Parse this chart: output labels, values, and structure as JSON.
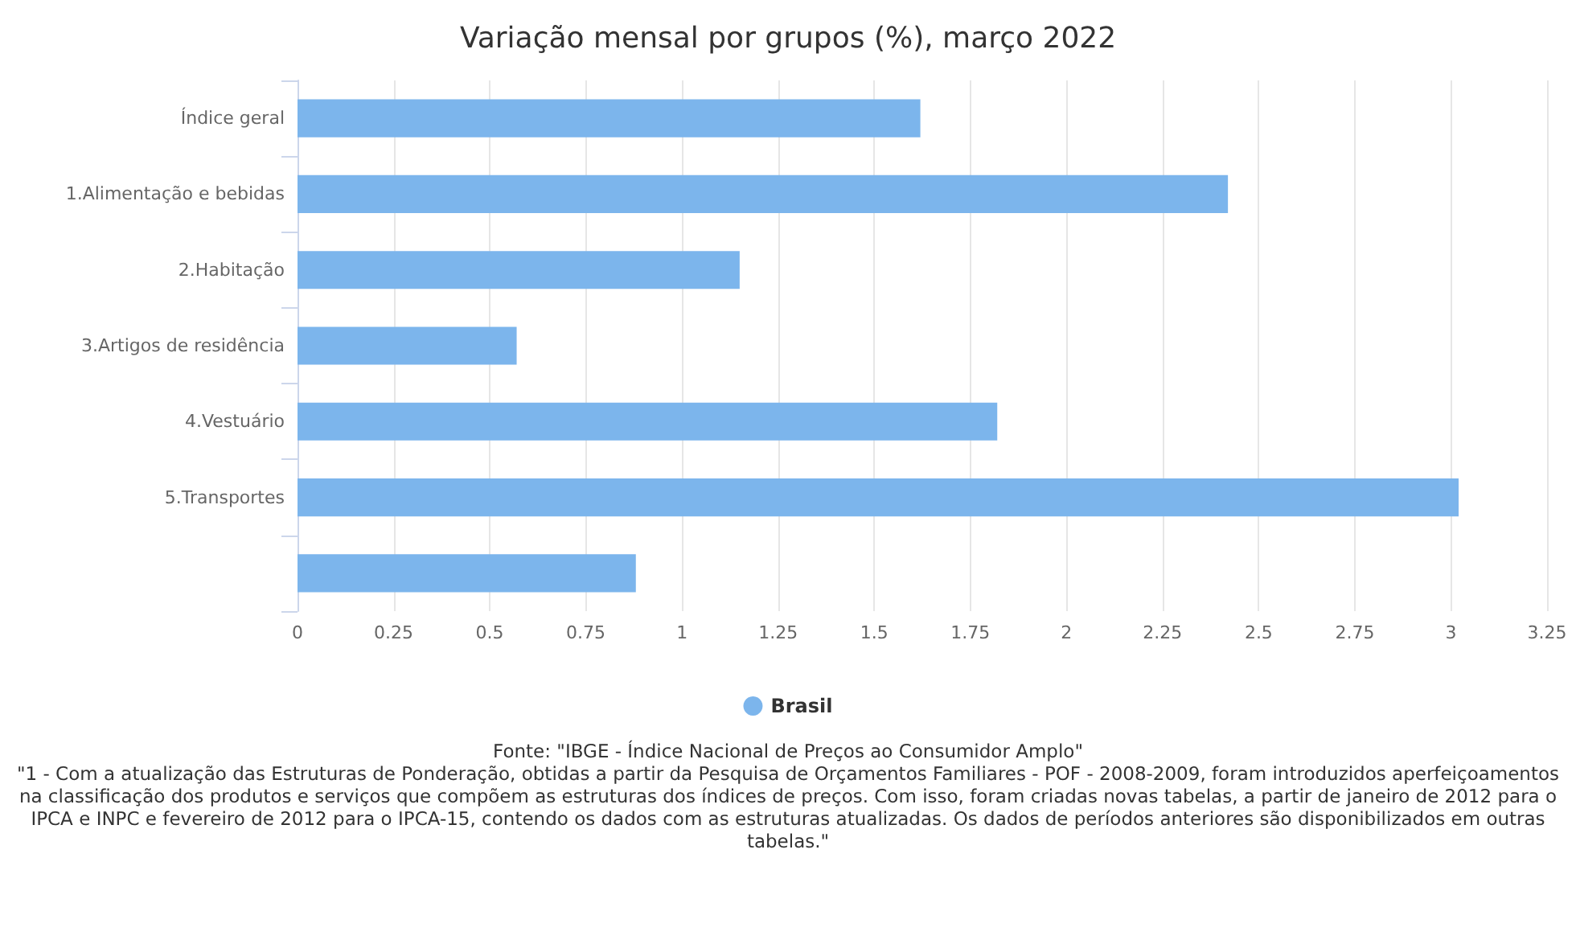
{
  "chart_data": {
    "type": "bar",
    "orientation": "horizontal",
    "title": "Variação mensal por grupos (%), março 2022",
    "categories": [
      "Índice geral",
      "1.Alimentação e bebidas",
      "2.Habitação",
      "3.Artigos de residência",
      "4.Vestuário",
      "5.Transportes",
      null
    ],
    "series": [
      {
        "name": "Brasil",
        "color": "#7cb5ec",
        "values": [
          1.62,
          2.42,
          1.15,
          0.57,
          1.82,
          3.02,
          0.88
        ]
      }
    ],
    "xlim": [
      0,
      3.25
    ],
    "xticks": [
      0,
      0.25,
      0.5,
      0.75,
      1,
      1.25,
      1.5,
      1.75,
      2,
      2.25,
      2.5,
      2.75,
      3,
      3.25
    ],
    "grid": "x",
    "legend": "bottom",
    "annotations": [
      "Fonte: \"IBGE - Índice Nacional de Preços ao Consumidor Amplo\"",
      "\"1 - Com a atualização das Estruturas de Ponderação, obtidas a partir da Pesquisa de Orçamentos Familiares - POF - 2008-2009, foram introduzidos aperfeiçoamentos na classificação dos produtos e serviços que compõem as estruturas dos índices de preços. Com isso, foram criadas novas tabelas, a partir de janeiro de 2012 para o IPCA e INPC e fevereiro de 2012 para o IPCA-15, contendo os dados com as estruturas atualizadas. Os dados de períodos anteriores são disponibilizados em outras tabelas.\""
    ]
  }
}
